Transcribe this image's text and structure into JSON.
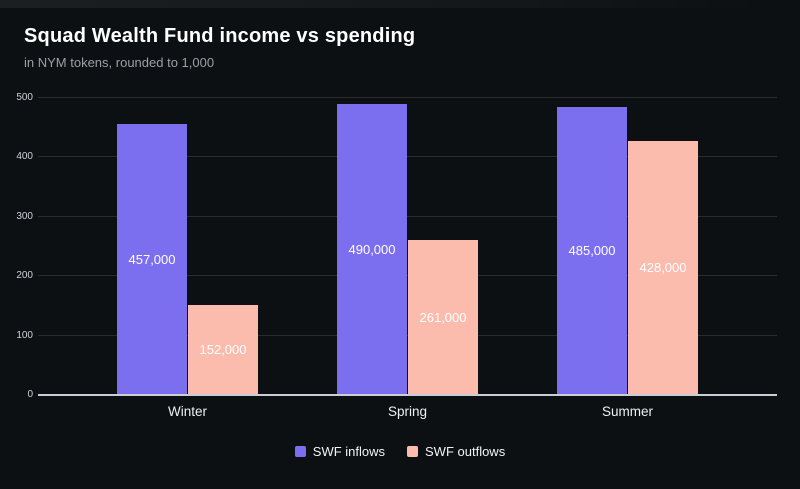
{
  "page": {
    "background_color": "#0d1013"
  },
  "chart_data": {
    "type": "bar",
    "title": "Squad Wealth Fund income vs spending",
    "subtitle": "in NYM tokens, rounded to 1,000",
    "categories": [
      "Winter",
      "Spring",
      "Summer"
    ],
    "series": [
      {
        "name": "SWF inflows",
        "color": "#7b6ff0",
        "values": [
          457000,
          490000,
          485000
        ]
      },
      {
        "name": "SWF outflows",
        "color": "#fbbcae",
        "values": [
          152000,
          261000,
          428000
        ]
      }
    ],
    "value_labels": [
      "457,000",
      "490,000",
      "485,000",
      "152,000",
      "261,000",
      "428,000"
    ],
    "y_axis": {
      "max": 500000,
      "ticks": [
        0,
        100000,
        200000,
        300000,
        400000,
        500000
      ],
      "tick_labels": [
        "0",
        "100",
        "200",
        "300",
        "400",
        "500"
      ]
    },
    "ylim": [
      0,
      500000
    ],
    "grid": "horizontal",
    "legend_position": "bottom",
    "colors": {
      "title": "#ffffff",
      "subtitle": "#9ba0a5",
      "gridline": "#282b2f",
      "baseline": "#c9ced2",
      "bar_label": "#ffffff"
    }
  }
}
